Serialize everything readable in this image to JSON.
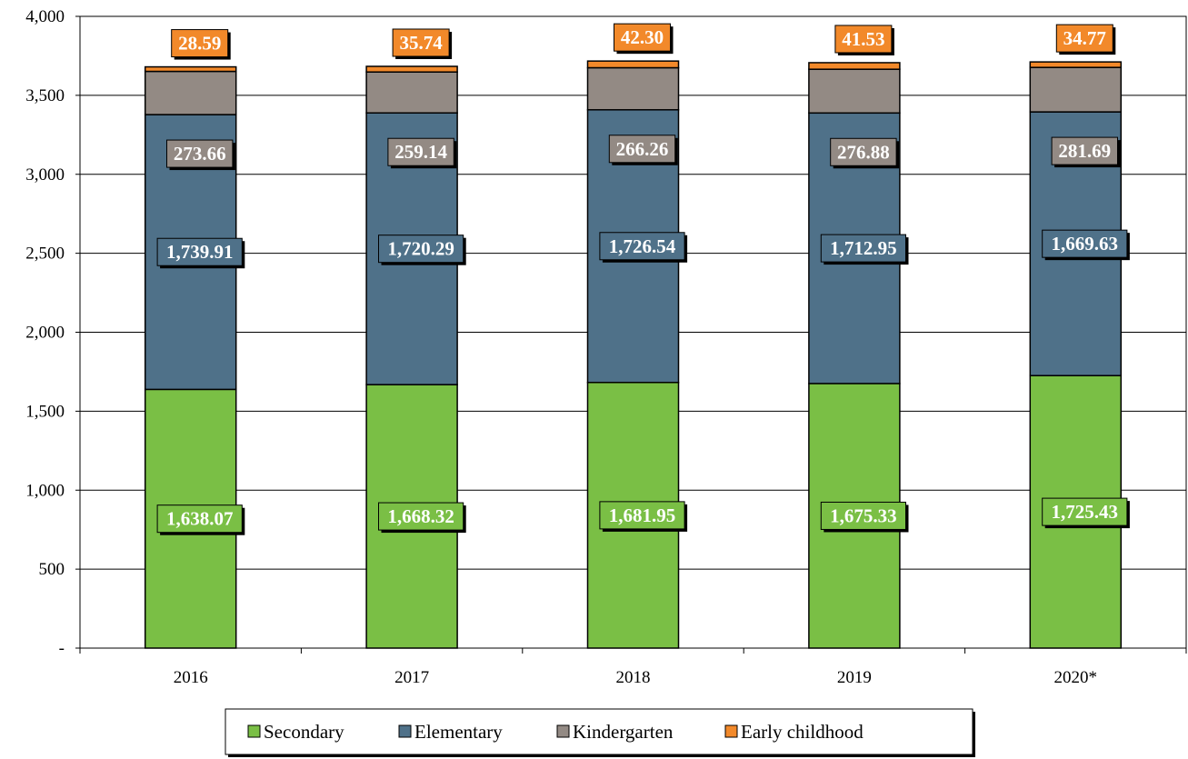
{
  "chart_data": {
    "type": "bar",
    "stacked": true,
    "categories": [
      "2016",
      "2017",
      "2018",
      "2019",
      "2020*"
    ],
    "series": [
      {
        "name": "Secondary",
        "color": "#7ABF45",
        "values": [
          1638.07,
          1668.32,
          1681.95,
          1675.33,
          1725.43
        ],
        "labels": [
          "1,638.07",
          "1,668.32",
          "1,681.95",
          "1,675.33",
          "1,725.43"
        ]
      },
      {
        "name": "Elementary",
        "color": "#4F7189",
        "values": [
          1739.91,
          1720.29,
          1726.54,
          1712.95,
          1669.63
        ],
        "labels": [
          "1,739.91",
          "1,720.29",
          "1,726.54",
          "1,712.95",
          "1,669.63"
        ]
      },
      {
        "name": "Kindergarten",
        "color": "#938A84",
        "values": [
          273.66,
          259.14,
          266.26,
          276.88,
          281.69
        ],
        "labels": [
          "273.66",
          "259.14",
          "266.26",
          "276.88",
          "281.69"
        ]
      },
      {
        "name": "Early childhood",
        "color": "#F2892A",
        "values": [
          28.59,
          35.74,
          42.3,
          41.53,
          34.77
        ],
        "labels": [
          "28.59",
          "35.74",
          "42.30",
          "41.53",
          "34.77"
        ]
      }
    ],
    "ylim": [
      0,
      4000
    ],
    "yticks": [
      0,
      500,
      1000,
      1500,
      2000,
      2500,
      3000,
      3500,
      4000
    ],
    "ytick_labels": [
      "-",
      "500",
      "1,000",
      "1,500",
      "2,000",
      "2,500",
      "3,000",
      "3,500",
      "4,000"
    ],
    "grid": true,
    "legend_position": "bottom",
    "title": "",
    "xlabel": "",
    "ylabel": ""
  }
}
